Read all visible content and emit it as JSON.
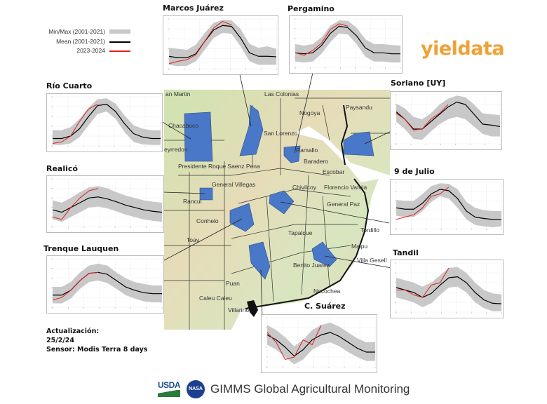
{
  "logo": {
    "text": "yieldata",
    "color": "#f0a135"
  },
  "legend": {
    "items": [
      {
        "label": "Min/Max (2001-2021)",
        "color": "#c8c8c8"
      },
      {
        "label": "Mean (2001-2021)",
        "color": "#000000"
      },
      {
        "label": "2023-2024",
        "color": "#e0201e"
      }
    ]
  },
  "info": {
    "line1": "Actualización:",
    "line2": "25/2/24",
    "line3": "Sensor: Modis Terra 8 days"
  },
  "footer": {
    "usda": "USDA",
    "nasa": "NASA",
    "text": "GIMMS Global Agricultural Monitoring"
  },
  "map": {
    "labels": [
      "an Martin",
      "Las Colonias",
      "Chacabuco",
      "eyrredon",
      "San Lorenzo",
      "Nogoya",
      "Paysandu",
      "Ramallo",
      "Baradero",
      "Presidente Roque Saenz Pena",
      "Escobar",
      "General Villegas",
      "Chivilcoy",
      "Florencio Varela",
      "Rancul",
      "General Paz",
      "Conhelo",
      "Tapalque",
      "Tordillo",
      "Toay",
      "Maipu",
      "Villa Gesell",
      "Benito Juarez",
      "Puan",
      "Necochea",
      "Caleu Caleu",
      "Villarino"
    ],
    "highlight_color": "#4a78c8"
  },
  "chart_data": [
    {
      "type": "area",
      "title": "Marcos Juárez",
      "ylim": [
        0,
        1
      ],
      "min": [
        0.08,
        0.05,
        0.06,
        0.15,
        0.38,
        0.62,
        0.72,
        0.7,
        0.45,
        0.15,
        0.08,
        0.08,
        0.08
      ],
      "max": [
        0.42,
        0.4,
        0.38,
        0.48,
        0.72,
        0.92,
        0.98,
        0.97,
        0.8,
        0.5,
        0.42,
        0.45,
        0.4
      ],
      "mean": [
        0.25,
        0.22,
        0.22,
        0.3,
        0.55,
        0.78,
        0.87,
        0.85,
        0.62,
        0.32,
        0.25,
        0.25,
        0.24
      ],
      "current": [
        0.1,
        0.15,
        0.18,
        0.28,
        0.55,
        0.82,
        0.95,
        0.88
      ]
    },
    {
      "type": "area",
      "title": "Pergamino",
      "ylim": [
        0,
        1
      ],
      "min": [
        0.12,
        0.1,
        0.12,
        0.28,
        0.52,
        0.7,
        0.68,
        0.48,
        0.22,
        0.12,
        0.12,
        0.1,
        0.1
      ],
      "max": [
        0.48,
        0.45,
        0.48,
        0.62,
        0.86,
        0.97,
        0.96,
        0.82,
        0.58,
        0.48,
        0.48,
        0.46,
        0.45
      ],
      "mean": [
        0.3,
        0.28,
        0.3,
        0.45,
        0.7,
        0.85,
        0.82,
        0.65,
        0.4,
        0.3,
        0.3,
        0.28,
        0.28
      ],
      "current": [
        0.3,
        0.25,
        0.35,
        0.5,
        0.78,
        0.9,
        0.85
      ]
    },
    {
      "type": "area",
      "title": "Río Cuarto",
      "ylim": [
        0,
        1
      ],
      "min": [
        0.02,
        0.02,
        0.05,
        0.18,
        0.42,
        0.65,
        0.7,
        0.55,
        0.28,
        0.08,
        0.03,
        0.02,
        0.02
      ],
      "max": [
        0.32,
        0.32,
        0.38,
        0.55,
        0.78,
        0.95,
        0.97,
        0.86,
        0.62,
        0.42,
        0.35,
        0.32,
        0.32
      ],
      "mean": [
        0.15,
        0.15,
        0.2,
        0.35,
        0.6,
        0.82,
        0.85,
        0.7,
        0.45,
        0.25,
        0.18,
        0.15,
        0.15
      ],
      "current": [
        0.05,
        0.08,
        0.2,
        0.5,
        0.75,
        0.85
      ]
    },
    {
      "type": "area",
      "title": "Soriano [UY]",
      "ylim": [
        0,
        1
      ],
      "min": [
        0.45,
        0.3,
        0.1,
        0.08,
        0.25,
        0.4,
        0.5,
        0.55,
        0.5,
        0.35,
        0.2,
        0.15,
        0.15
      ],
      "max": [
        0.82,
        0.72,
        0.55,
        0.5,
        0.62,
        0.8,
        0.92,
        0.98,
        0.95,
        0.8,
        0.62,
        0.6,
        0.58
      ],
      "mean": [
        0.65,
        0.5,
        0.3,
        0.3,
        0.45,
        0.6,
        0.75,
        0.85,
        0.8,
        0.6,
        0.4,
        0.38,
        0.35
      ],
      "current": [
        0.62,
        0.5,
        0.28,
        0.3,
        0.5,
        0.62,
        0.8
      ]
    },
    {
      "type": "area",
      "title": "Realicó",
      "ylim": [
        0,
        1
      ],
      "min": [
        0.15,
        0.1,
        0.2,
        0.3,
        0.4,
        0.42,
        0.38,
        0.32,
        0.25,
        0.2,
        0.15,
        0.12,
        0.1
      ],
      "max": [
        0.55,
        0.5,
        0.6,
        0.72,
        0.82,
        0.85,
        0.8,
        0.72,
        0.65,
        0.6,
        0.55,
        0.52,
        0.5
      ],
      "mean": [
        0.35,
        0.3,
        0.4,
        0.5,
        0.6,
        0.62,
        0.58,
        0.52,
        0.45,
        0.4,
        0.35,
        0.32,
        0.3
      ],
      "current": [
        0.2,
        0.15,
        0.4,
        0.6,
        0.75,
        0.8
      ]
    },
    {
      "type": "area",
      "title": "9 de Julio",
      "ylim": [
        0,
        1
      ],
      "min": [
        0.28,
        0.25,
        0.25,
        0.38,
        0.58,
        0.7,
        0.65,
        0.45,
        0.2,
        0.08,
        0.05,
        0.03,
        0.05
      ],
      "max": [
        0.62,
        0.6,
        0.6,
        0.75,
        0.92,
        0.98,
        0.97,
        0.85,
        0.58,
        0.45,
        0.4,
        0.38,
        0.38
      ],
      "mean": [
        0.45,
        0.42,
        0.42,
        0.55,
        0.75,
        0.85,
        0.82,
        0.65,
        0.38,
        0.25,
        0.22,
        0.2,
        0.2
      ],
      "current": [
        0.2,
        0.25,
        0.3,
        0.45,
        0.7,
        0.75,
        0.9
      ]
    },
    {
      "type": "area",
      "title": "Trenque Lauquen",
      "ylim": [
        0,
        1
      ],
      "min": [
        0.08,
        0.08,
        0.18,
        0.38,
        0.52,
        0.55,
        0.5,
        0.38,
        0.25,
        0.18,
        0.12,
        0.1,
        0.1
      ],
      "max": [
        0.42,
        0.42,
        0.52,
        0.72,
        0.86,
        0.9,
        0.86,
        0.72,
        0.6,
        0.52,
        0.48,
        0.45,
        0.45
      ],
      "mean": [
        0.25,
        0.25,
        0.35,
        0.55,
        0.7,
        0.72,
        0.68,
        0.55,
        0.42,
        0.35,
        0.3,
        0.28,
        0.28
      ],
      "current": [
        0.15,
        0.2,
        0.35,
        0.55,
        0.7,
        0.72
      ]
    },
    {
      "type": "area",
      "title": "Tandil",
      "ylim": [
        0,
        1
      ],
      "min": [
        0.3,
        0.25,
        0.2,
        0.1,
        0.18,
        0.35,
        0.5,
        0.52,
        0.4,
        0.2,
        0.08,
        0.02,
        0.02
      ],
      "max": [
        0.7,
        0.65,
        0.6,
        0.52,
        0.6,
        0.75,
        0.9,
        0.92,
        0.8,
        0.6,
        0.45,
        0.38,
        0.36
      ],
      "mean": [
        0.5,
        0.45,
        0.4,
        0.3,
        0.38,
        0.55,
        0.7,
        0.72,
        0.6,
        0.4,
        0.25,
        0.18,
        0.17
      ],
      "current": [
        0.45,
        0.45,
        0.35,
        0.3,
        0.55,
        0.6,
        0.9
      ]
    },
    {
      "type": "area",
      "title": "C. Suárez",
      "ylim": [
        0,
        1
      ],
      "min": [
        0.45,
        0.35,
        0.2,
        0.05,
        0.15,
        0.35,
        0.45,
        0.5,
        0.42,
        0.3,
        0.2,
        0.12,
        0.12
      ],
      "max": [
        0.85,
        0.75,
        0.6,
        0.42,
        0.55,
        0.75,
        0.85,
        0.9,
        0.82,
        0.7,
        0.58,
        0.5,
        0.5
      ],
      "mean": [
        0.65,
        0.55,
        0.4,
        0.22,
        0.35,
        0.55,
        0.65,
        0.7,
        0.62,
        0.5,
        0.38,
        0.3,
        0.3
      ],
      "current": [
        0.7,
        0.5,
        0.15,
        0.2,
        0.55,
        0.45,
        0.85
      ]
    }
  ]
}
